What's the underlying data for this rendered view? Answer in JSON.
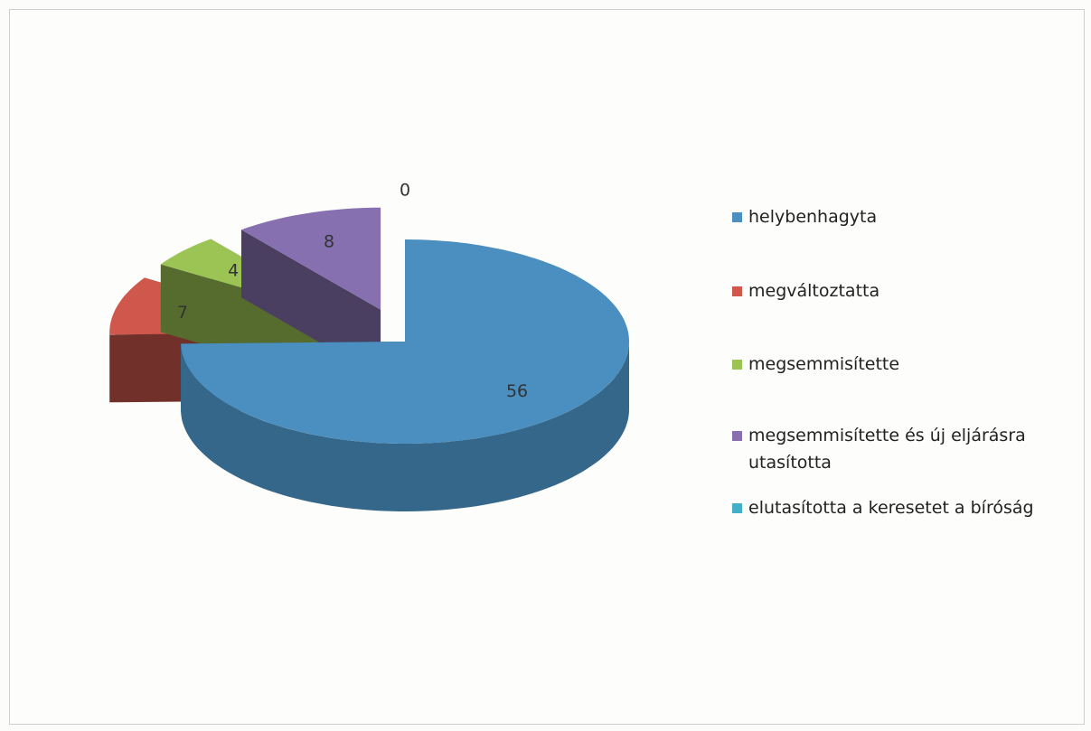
{
  "chart_data": {
    "type": "pie",
    "categories": [
      "helybenhagyta",
      "megváltoztatta",
      "megsemmisítette",
      "megsemmisítette és új eljárásra utasította",
      "elutasította a keresetet a bíróság"
    ],
    "values": [
      56,
      7,
      4,
      8,
      0
    ],
    "colors": [
      "#4a8fbf",
      "#d0574c",
      "#9cc454",
      "#8670b0",
      "#45aec8"
    ],
    "legend": "right"
  }
}
